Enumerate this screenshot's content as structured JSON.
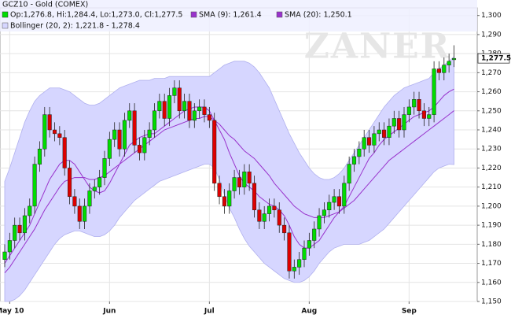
{
  "chart_data": {
    "type": "candlestick",
    "title": "GCZ10 - Gold (COMEX)",
    "ohlc_label": "Op:1,276.8, Hi:1,284.4, Lo:1,273.0, Cl:1,277.5",
    "watermark": "ZANER",
    "last_label": "1,277.5",
    "up_color": "#00dd00",
    "down_color": "#dd0000",
    "categories": [
      null,
      "May 10",
      null,
      null,
      null,
      null,
      null,
      null,
      null,
      null,
      null,
      null,
      null,
      null,
      null,
      null,
      null,
      null,
      null,
      null,
      null,
      "Jun",
      null,
      null,
      null,
      null,
      null,
      null,
      null,
      null,
      null,
      null,
      null,
      null,
      null,
      null,
      null,
      null,
      null,
      null,
      null,
      "Jul",
      null,
      null,
      null,
      null,
      null,
      null,
      null,
      null,
      null,
      null,
      null,
      null,
      null,
      null,
      null,
      null,
      null,
      null,
      null,
      "Aug",
      null,
      null,
      null,
      null,
      null,
      null,
      null,
      null,
      null,
      null,
      null,
      null,
      null,
      null,
      null,
      null,
      null,
      null,
      null,
      "Sep",
      null,
      null,
      null,
      null,
      null,
      null,
      null,
      null,
      null
    ],
    "open": [
      1172,
      1176,
      1182,
      1190,
      1186,
      1195,
      1200,
      1222,
      1230,
      1248,
      1240,
      1238,
      1236,
      1220,
      1205,
      1200,
      1192,
      1200,
      1208,
      1210,
      1215,
      1225,
      1235,
      1240,
      1230,
      1245,
      1250,
      1232,
      1228,
      1236,
      1240,
      1250,
      1255,
      1246,
      1258,
      1262,
      1250,
      1255,
      1245,
      1250,
      1252,
      1248,
      1245,
      1212,
      1205,
      1200,
      1208,
      1215,
      1210,
      1218,
      1212,
      1198,
      1192,
      1196,
      1200,
      1198,
      1190,
      1186,
      1166,
      1168,
      1172,
      1178,
      1182,
      1188,
      1195,
      1198,
      1202,
      1205,
      1200,
      1212,
      1222,
      1226,
      1230,
      1236,
      1232,
      1238,
      1240,
      1236,
      1242,
      1246,
      1240,
      1248,
      1252,
      1256,
      1250,
      1246,
      1248,
      1272,
      1270,
      1274,
      1276.8
    ],
    "high": [
      1180,
      1186,
      1194,
      1194,
      1199,
      1204,
      1226,
      1234,
      1252,
      1252,
      1244,
      1242,
      1240,
      1224,
      1209,
      1204,
      1204,
      1212,
      1214,
      1219,
      1229,
      1239,
      1244,
      1244,
      1249,
      1254,
      1254,
      1236,
      1240,
      1244,
      1254,
      1259,
      1259,
      1262,
      1266,
      1266,
      1259,
      1259,
      1254,
      1256,
      1256,
      1252,
      1249,
      1216,
      1209,
      1212,
      1219,
      1219,
      1222,
      1222,
      1216,
      1202,
      1200,
      1204,
      1204,
      1202,
      1194,
      1190,
      1172,
      1176,
      1182,
      1186,
      1192,
      1199,
      1202,
      1206,
      1209,
      1209,
      1216,
      1226,
      1230,
      1234,
      1240,
      1240,
      1242,
      1244,
      1244,
      1246,
      1250,
      1250,
      1252,
      1256,
      1260,
      1260,
      1254,
      1252,
      1276,
      1276,
      1278,
      1280,
      1284.4
    ],
    "low": [
      1168,
      1172,
      1178,
      1182,
      1182,
      1191,
      1196,
      1218,
      1226,
      1236,
      1234,
      1232,
      1216,
      1201,
      1196,
      1188,
      1188,
      1196,
      1204,
      1206,
      1211,
      1221,
      1231,
      1226,
      1226,
      1241,
      1228,
      1224,
      1224,
      1232,
      1236,
      1246,
      1242,
      1242,
      1254,
      1246,
      1246,
      1241,
      1241,
      1246,
      1244,
      1241,
      1208,
      1201,
      1196,
      1196,
      1204,
      1206,
      1206,
      1208,
      1194,
      1188,
      1188,
      1192,
      1194,
      1186,
      1182,
      1162,
      1162,
      1164,
      1168,
      1174,
      1178,
      1184,
      1191,
      1194,
      1198,
      1196,
      1196,
      1208,
      1218,
      1222,
      1226,
      1228,
      1228,
      1234,
      1232,
      1232,
      1238,
      1236,
      1236,
      1244,
      1248,
      1246,
      1242,
      1242,
      1244,
      1266,
      1266,
      1270,
      1273
    ],
    "close": [
      1176,
      1182,
      1190,
      1186,
      1195,
      1200,
      1222,
      1230,
      1248,
      1240,
      1238,
      1236,
      1220,
      1205,
      1200,
      1192,
      1200,
      1208,
      1210,
      1215,
      1225,
      1235,
      1240,
      1230,
      1245,
      1250,
      1232,
      1228,
      1236,
      1240,
      1250,
      1255,
      1246,
      1258,
      1262,
      1250,
      1255,
      1245,
      1250,
      1252,
      1248,
      1245,
      1212,
      1205,
      1200,
      1208,
      1215,
      1210,
      1218,
      1212,
      1198,
      1192,
      1196,
      1200,
      1198,
      1190,
      1186,
      1166,
      1168,
      1172,
      1178,
      1182,
      1188,
      1195,
      1198,
      1202,
      1205,
      1200,
      1212,
      1222,
      1226,
      1230,
      1236,
      1232,
      1238,
      1240,
      1236,
      1242,
      1246,
      1240,
      1248,
      1252,
      1256,
      1250,
      1246,
      1248,
      1272,
      1270,
      1274,
      1276,
      1277.5
    ],
    "series": [
      {
        "name": "Bollinger (20, 2): 1,221.8 - 1,278.4",
        "type": "band",
        "color": "#d6d6ff",
        "upper": [
          1213,
          1220,
          1228,
          1236,
          1244,
          1250,
          1255,
          1258,
          1260,
          1262,
          1262,
          1262,
          1261,
          1260,
          1258,
          1256,
          1254,
          1253,
          1253,
          1254,
          1256,
          1258,
          1260,
          1262,
          1263,
          1264,
          1265,
          1266,
          1266,
          1266,
          1267,
          1267,
          1267,
          1268,
          1268,
          1268,
          1268,
          1268,
          1268,
          1268,
          1268,
          1268,
          1270,
          1272,
          1274,
          1275,
          1276,
          1276,
          1276,
          1275,
          1273,
          1270,
          1266,
          1262,
          1256,
          1250,
          1244,
          1238,
          1233,
          1228,
          1224,
          1220,
          1217,
          1215,
          1214,
          1214,
          1215,
          1217,
          1220,
          1224,
          1228,
          1232,
          1236,
          1240,
          1244,
          1248,
          1252,
          1255,
          1258,
          1260,
          1262,
          1263,
          1264,
          1265,
          1266,
          1267,
          1270,
          1272,
          1274,
          1276,
          1278.4
        ],
        "lower": [
          1150,
          1150,
          1151,
          1153,
          1156,
          1160,
          1164,
          1168,
          1172,
          1176,
          1180,
          1183,
          1185,
          1186,
          1187,
          1187,
          1186,
          1185,
          1184,
          1184,
          1185,
          1187,
          1190,
          1194,
          1197,
          1200,
          1203,
          1205,
          1207,
          1209,
          1211,
          1213,
          1214,
          1215,
          1216,
          1217,
          1218,
          1219,
          1220,
          1221,
          1222,
          1222,
          1220,
          1214,
          1206,
          1199,
          1194,
          1188,
          1183,
          1179,
          1176,
          1173,
          1170,
          1168,
          1166,
          1164,
          1162,
          1161,
          1160,
          1160,
          1161,
          1163,
          1166,
          1170,
          1173,
          1176,
          1178,
          1179,
          1180,
          1180,
          1180,
          1180,
          1181,
          1182,
          1184,
          1186,
          1188,
          1191,
          1194,
          1197,
          1200,
          1203,
          1206,
          1209,
          1212,
          1215,
          1218,
          1220,
          1221,
          1222,
          1221.8
        ]
      },
      {
        "name": "SMA (9): 1,261.4",
        "type": "line",
        "color": "#9933cc",
        "values": [
          1170,
          1174,
          1178,
          1182,
          1186,
          1190,
          1196,
          1202,
          1208,
          1214,
          1218,
          1222,
          1224,
          1224,
          1222,
          1218,
          1214,
          1210,
          1208,
          1207,
          1208,
          1212,
          1217,
          1222,
          1227,
          1232,
          1234,
          1236,
          1237,
          1238,
          1238,
          1240,
          1242,
          1244,
          1246,
          1248,
          1250,
          1251,
          1252,
          1252,
          1252,
          1250,
          1245,
          1240,
          1235,
          1228,
          1222,
          1216,
          1212,
          1210,
          1208,
          1205,
          1203,
          1201,
          1200,
          1198,
          1195,
          1190,
          1184,
          1180,
          1178,
          1178,
          1180,
          1182,
          1186,
          1190,
          1194,
          1197,
          1200,
          1205,
          1210,
          1215,
          1220,
          1225,
          1228,
          1232,
          1235,
          1237,
          1239,
          1241,
          1243,
          1245,
          1247,
          1248,
          1249,
          1250,
          1252,
          1255,
          1258,
          1260,
          1261.4
        ]
      },
      {
        "name": "SMA (20): 1,250.1",
        "type": "line",
        "color": "#9933cc",
        "values": [
          1165,
          1168,
          1172,
          1176,
          1180,
          1184,
          1188,
          1193,
          1198,
          1202,
          1206,
          1210,
          1213,
          1214,
          1215,
          1215,
          1215,
          1214,
          1214,
          1215,
          1216,
          1218,
          1220,
          1222,
          1224,
          1226,
          1228,
          1230,
          1232,
          1234,
          1236,
          1238,
          1240,
          1241,
          1242,
          1243,
          1244,
          1245,
          1246,
          1246,
          1247,
          1247,
          1245,
          1243,
          1240,
          1237,
          1235,
          1232,
          1229,
          1227,
          1225,
          1222,
          1219,
          1216,
          1212,
          1209,
          1206,
          1203,
          1200,
          1198,
          1196,
          1195,
          1194,
          1194,
          1194,
          1195,
          1196,
          1197,
          1199,
          1201,
          1203,
          1206,
          1209,
          1212,
          1215,
          1218,
          1221,
          1224,
          1226,
          1228,
          1230,
          1232,
          1234,
          1236,
          1238,
          1240,
          1242,
          1244,
          1246,
          1248,
          1250.1
        ]
      }
    ],
    "ylim": [
      1150,
      1304
    ],
    "yticks": [
      {
        "value": 1150,
        "label": "1,150"
      },
      {
        "value": 1160,
        "label": "1,160"
      },
      {
        "value": 1170,
        "label": "1,170"
      },
      {
        "value": 1180,
        "label": "1,180"
      },
      {
        "value": 1190,
        "label": "1,190"
      },
      {
        "value": 1200,
        "label": "1,200"
      },
      {
        "value": 1210,
        "label": "1,210"
      },
      {
        "value": 1220,
        "label": "1,220"
      },
      {
        "value": 1230,
        "label": "1,230"
      },
      {
        "value": 1240,
        "label": "1,240"
      },
      {
        "value": 1250,
        "label": "1,250"
      },
      {
        "value": 1260,
        "label": "1,260"
      },
      {
        "value": 1270,
        "label": "1,270"
      },
      {
        "value": 1280,
        "label": "1,280"
      },
      {
        "value": 1290,
        "label": "1,290"
      },
      {
        "value": 1300,
        "label": "1,300"
      }
    ],
    "grid": true
  }
}
